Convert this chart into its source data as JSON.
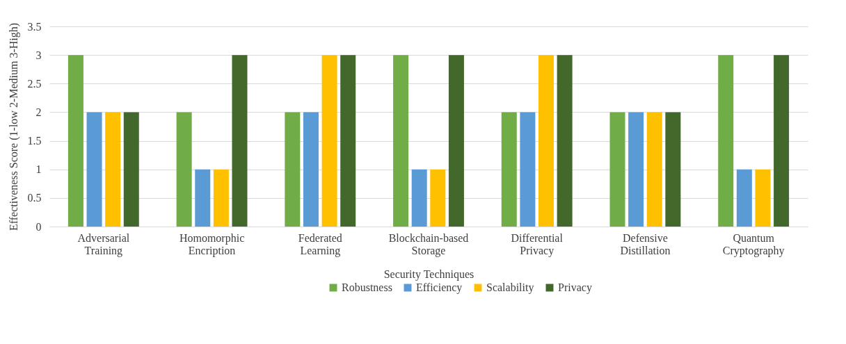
{
  "chart_data": {
    "type": "bar",
    "xlabel": "Security Techniques",
    "ylabel": "Effectiveness Score (1-low 2-Medium 3-High)",
    "categories": [
      "Adversarial Training",
      "Homomorphic Encription",
      "Federated Learning",
      "Blockchain-based Storage",
      "Differential Privacy",
      "Defensive Distillation",
      "Quantum Cryptography"
    ],
    "series": [
      {
        "name": "Robustness",
        "color": "#70ad47",
        "values": [
          3,
          2,
          2,
          3,
          2,
          2,
          3
        ]
      },
      {
        "name": "Efficiency",
        "color": "#5b9bd5",
        "values": [
          2,
          1,
          2,
          1,
          2,
          2,
          1
        ]
      },
      {
        "name": "Scalability",
        "color": "#ffc000",
        "values": [
          2,
          1,
          3,
          1,
          3,
          2,
          1
        ]
      },
      {
        "name": "Privacy",
        "color": "#43682b",
        "values": [
          2,
          3,
          3,
          3,
          3,
          2,
          3
        ]
      }
    ],
    "ylim": [
      0,
      3.5
    ],
    "yticks": [
      0,
      0.5,
      1,
      1.5,
      2,
      2.5,
      3,
      3.5
    ],
    "grid": "y",
    "legend": "bottom"
  }
}
